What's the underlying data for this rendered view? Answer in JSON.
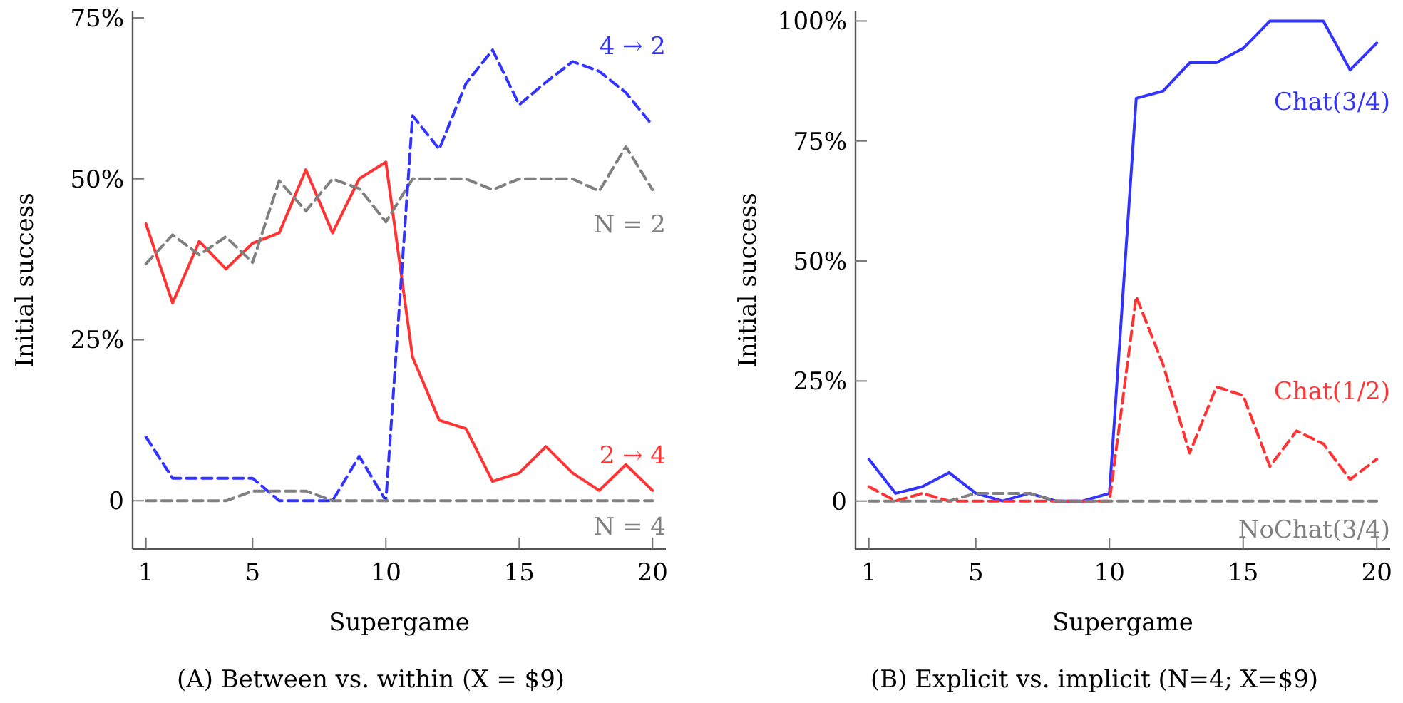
{
  "chart_data": [
    {
      "type": "line",
      "title": "(A) Between vs. within (X = $9)",
      "xlabel": "Supergame",
      "ylabel": "Initial success",
      "x": [
        1,
        2,
        3,
        4,
        5,
        6,
        7,
        8,
        9,
        10,
        11,
        12,
        13,
        14,
        15,
        16,
        17,
        18,
        19,
        20
      ],
      "xlim": [
        0.5,
        20.5
      ],
      "xticks": [
        1,
        5,
        10,
        15,
        20
      ],
      "ylim": [
        -7.5,
        76
      ],
      "yticks": [
        0,
        {
          "value": 25,
          "label": "25%"
        },
        {
          "value": 50,
          "label": "50%"
        },
        {
          "value": 75,
          "label": "75%"
        }
      ],
      "grid": false,
      "marker": "none",
      "series": [
        {
          "name": "2 → 4",
          "color": "#ff3333",
          "line_style": "solid",
          "values": [
            43,
            30.7,
            40.3,
            36,
            40,
            41.6,
            51.4,
            41.6,
            50,
            52.6,
            22.3,
            12.5,
            11.2,
            3,
            4.3,
            8.4,
            4.3,
            1.6,
            5.6,
            1.6
          ]
        },
        {
          "name": "N = 2",
          "color": "#808080",
          "line_style": "dashed",
          "values": [
            36.8,
            41.3,
            38.2,
            41,
            37,
            49.7,
            45,
            50,
            48.5,
            43.3,
            50,
            50,
            50,
            48.3,
            50,
            50,
            50,
            48.1,
            55,
            48.3
          ]
        },
        {
          "name": "4 → 2",
          "color": "#3333ff",
          "line_style": "dashed",
          "values": [
            9.9,
            3.5,
            3.5,
            3.5,
            3.5,
            0,
            0,
            0,
            6.9,
            0,
            59.8,
            54.6,
            64.8,
            70,
            61.5,
            65,
            68.2,
            66.7,
            63.4,
            58.3
          ]
        },
        {
          "name": "N = 4",
          "color": "#808080",
          "line_style": "dashed",
          "values": [
            0,
            0,
            0,
            0,
            1.5,
            1.5,
            1.5,
            0,
            0,
            0,
            0,
            0,
            0,
            0,
            0,
            0,
            0,
            0,
            0,
            0
          ]
        }
      ]
    },
    {
      "type": "line",
      "title": "(B) Explicit vs. implicit (N=4; X=$9)",
      "xlabel": "Supergame",
      "ylabel": "Initial success",
      "x": [
        1,
        2,
        3,
        4,
        5,
        6,
        7,
        8,
        9,
        10,
        11,
        12,
        13,
        14,
        15,
        16,
        17,
        18,
        19,
        20
      ],
      "xlim": [
        0.5,
        20.5
      ],
      "xticks": [
        1,
        5,
        10,
        15,
        20
      ],
      "ylim": [
        -10,
        102
      ],
      "yticks": [
        0,
        {
          "value": 25,
          "label": "25%"
        },
        {
          "value": 50,
          "label": "50%"
        },
        {
          "value": 75,
          "label": "75%"
        },
        {
          "value": 100,
          "label": "100%"
        }
      ],
      "grid": false,
      "marker": "none",
      "series": [
        {
          "name": "Chat(3/4)",
          "color": "#3333ff",
          "line_style": "solid",
          "values": [
            8.7,
            1.6,
            3,
            5.9,
            1.6,
            0,
            1.6,
            0,
            0,
            1.6,
            83.9,
            85.4,
            91.3,
            91.3,
            94.3,
            100,
            100,
            100,
            89.8,
            95.4
          ]
        },
        {
          "name": "Chat(1/2)",
          "color": "#ff3333",
          "line_style": "dashed",
          "values": [
            3,
            0,
            1.6,
            0,
            0,
            0,
            0,
            0,
            0,
            0,
            42.6,
            28.5,
            10,
            23.8,
            22,
            7.2,
            14.6,
            11.9,
            4.5,
            8.7
          ]
        },
        {
          "name": "NoChat(3/4)",
          "color": "#808080",
          "line_style": "dashed",
          "values": [
            0,
            0,
            0,
            0,
            1.6,
            1.6,
            1.6,
            0,
            0,
            0,
            0,
            0,
            0,
            0,
            0,
            0,
            0,
            0,
            0,
            0
          ]
        }
      ]
    }
  ]
}
